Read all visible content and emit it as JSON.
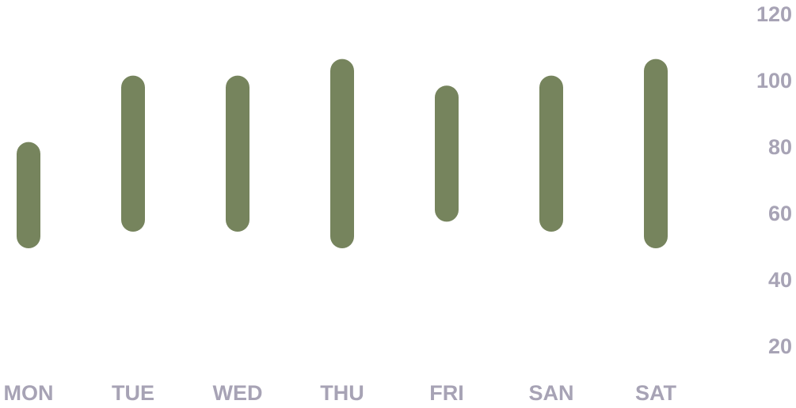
{
  "chart_data": {
    "type": "bar",
    "subtype": "range",
    "categories": [
      "MON",
      "TUE",
      "WED",
      "THU",
      "FRI",
      "SAN",
      "SAT"
    ],
    "series": [
      {
        "low": [
          50,
          55,
          55,
          50,
          58,
          55,
          50
        ],
        "high": [
          82,
          102,
          102,
          107,
          99,
          102,
          107
        ]
      }
    ],
    "y_ticks": [
      "20",
      "40",
      "60",
      "80",
      "100",
      "120"
    ],
    "ylim": [
      20,
      120
    ],
    "y_axis_position": "right",
    "grid": false,
    "legend": "none",
    "colors": {
      "bar": "#76845d",
      "label": "#a7a3b5"
    }
  }
}
